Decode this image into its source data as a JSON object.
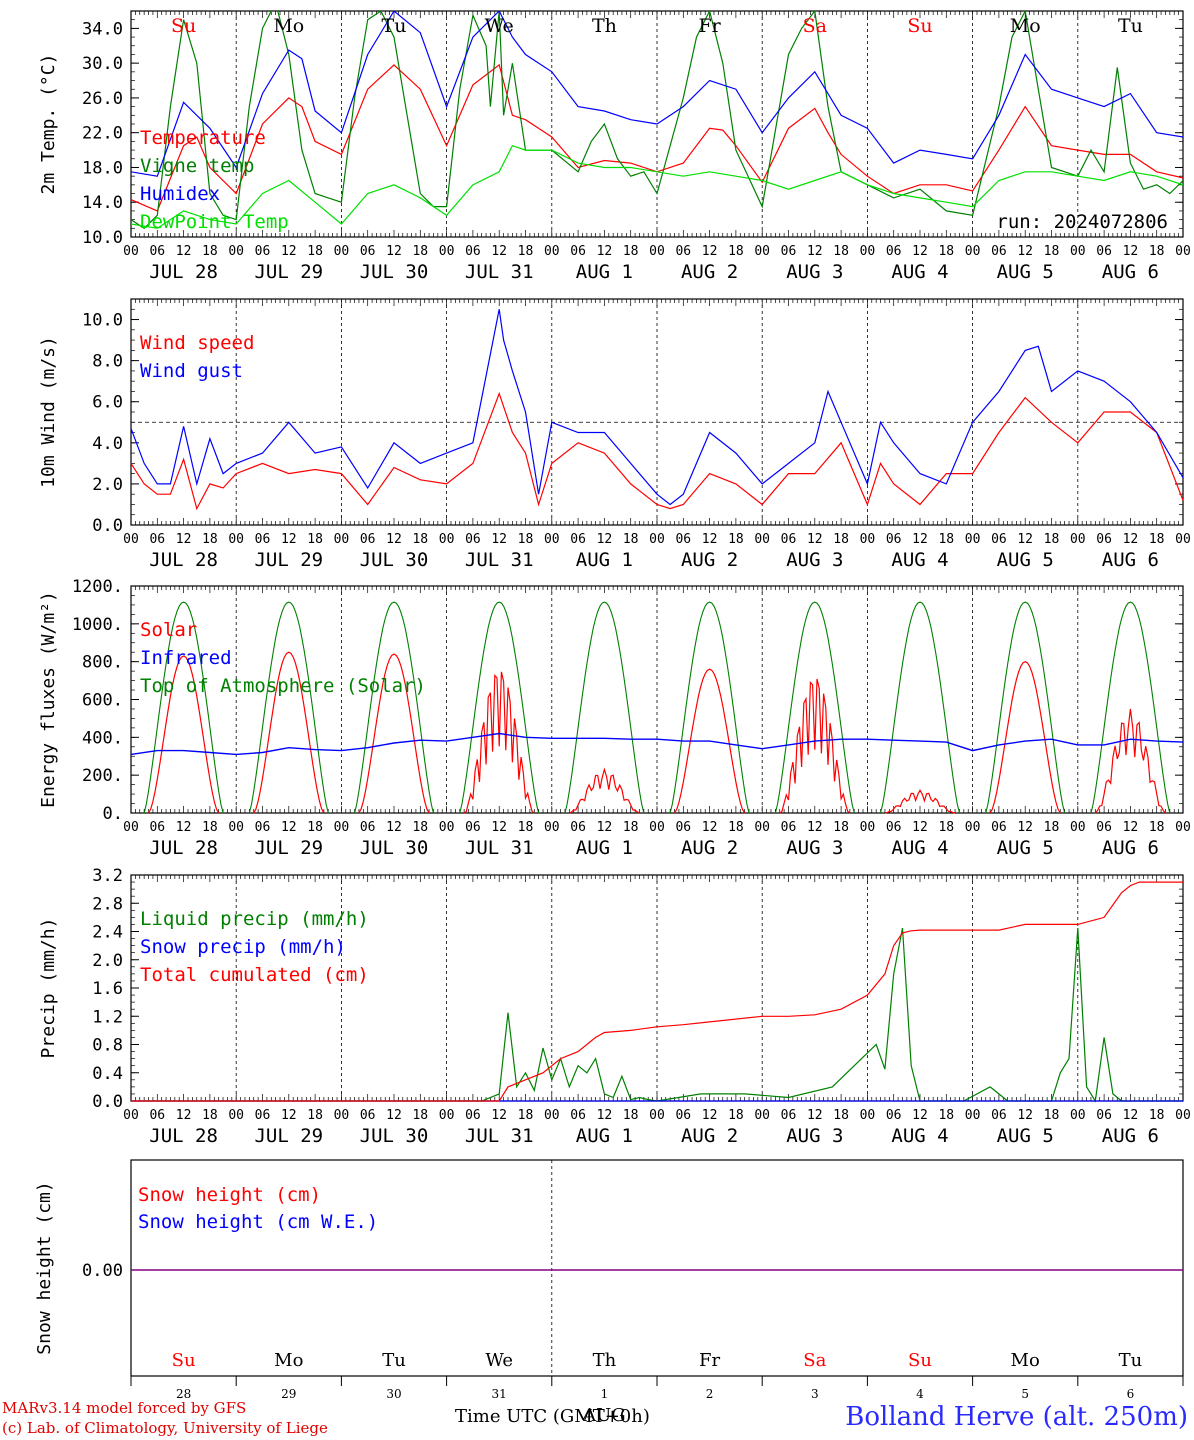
{
  "colors": {
    "temperature": "#ff0000",
    "vigne": "#008000",
    "humidex": "#0000ff",
    "dewpoint": "#00e000",
    "wind_speed": "#ff0000",
    "wind_gust": "#0000ff",
    "solar": "#ff0000",
    "infrared": "#0000ff",
    "toa": "#008000",
    "liquid": "#008000",
    "snow_precip": "#0000ff",
    "total_cum": "#ff0000",
    "snow_cm": "#ff0000",
    "snow_we": "#0000ff",
    "snow_line": "#800080",
    "weekend_day": "#ff0000",
    "weekday": "#000000"
  },
  "time_axis": {
    "hour_labels": [
      "00",
      "06",
      "12",
      "18"
    ],
    "end_label": "00",
    "date_labels": [
      "JUL 28",
      "JUL 29",
      "JUL 30",
      "JUL 31",
      "AUG  1",
      "AUG  2",
      "AUG  3",
      "AUG  4",
      "AUG  5",
      "AUG  6"
    ],
    "day_names": [
      "Su",
      "Mo",
      "Tu",
      "We",
      "Th",
      "Fr",
      "Sa",
      "Su",
      "Mo",
      "Tu"
    ],
    "day_weekend": [
      true,
      false,
      false,
      false,
      false,
      false,
      true,
      true,
      false,
      false
    ],
    "day_numbers": [
      "28",
      "29",
      "30",
      "31",
      "1",
      "2",
      "3",
      "4",
      "5",
      "6"
    ],
    "month_label": "AUG",
    "axis_title": "Time UTC (GMT+0h)"
  },
  "run_label": "run: 2024072806",
  "footer": {
    "line1": "MARv3.14 model forced by GFS",
    "line2": "(c) Lab. of Climatology, University of Liege",
    "station": "Bolland  Herve (alt. 250m)"
  },
  "chart_data": [
    {
      "type": "line",
      "ylabel": "2m Temp. (°C)",
      "ylim": [
        10,
        36
      ],
      "y_ticks": [
        "10.0",
        "14.0",
        "18.0",
        "22.0",
        "26.0",
        "30.0",
        "34.0"
      ],
      "x_unit": "hours since JUL 28 00 UTC",
      "series": [
        {
          "name": "Temperature",
          "color_key": "temperature",
          "x": [
            0,
            6,
            12,
            15,
            18,
            24,
            30,
            36,
            39,
            42,
            48,
            54,
            60,
            66,
            72,
            78,
            84,
            87,
            90,
            96,
            102,
            108,
            114,
            120,
            126,
            132,
            135,
            138,
            144,
            150,
            156,
            159,
            162,
            168,
            174,
            180,
            186,
            192,
            198,
            204,
            210,
            216,
            222,
            228,
            234,
            240
          ],
          "values": [
            14.3,
            13.0,
            20.5,
            21.5,
            18.0,
            15.0,
            23.0,
            26.0,
            25.0,
            21.0,
            19.5,
            27.0,
            29.8,
            27.0,
            20.5,
            27.5,
            29.8,
            24.0,
            23.5,
            21.5,
            18.0,
            18.8,
            18.5,
            17.5,
            18.5,
            22.5,
            22.3,
            20.5,
            16.3,
            22.5,
            24.8,
            22.0,
            19.5,
            17.0,
            15.0,
            16.0,
            16.0,
            15.3,
            20.0,
            25.0,
            20.5,
            20.0,
            19.5,
            19.5,
            17.5,
            16.8
          ]
        },
        {
          "name": "Vigne temp",
          "color_key": "vigne",
          "x": [
            0,
            3,
            6,
            9,
            12,
            15,
            18,
            21,
            24,
            27,
            30,
            33,
            36,
            39,
            42,
            45,
            48,
            51,
            54,
            57,
            60,
            63,
            66,
            69,
            72,
            75,
            78,
            81,
            82,
            84,
            85,
            87,
            90,
            96,
            102,
            105,
            108,
            111,
            114,
            117,
            120,
            126,
            129,
            132,
            135,
            138,
            144,
            150,
            153,
            156,
            159,
            162,
            168,
            174,
            180,
            186,
            192,
            198,
            201,
            204,
            207,
            210,
            213,
            216,
            219,
            222,
            225,
            228,
            231,
            234,
            237,
            240
          ],
          "values": [
            12.0,
            11.0,
            12.5,
            25.0,
            35.0,
            30.0,
            15.0,
            12.5,
            12.0,
            25.0,
            34.0,
            37.0,
            31.0,
            20.0,
            15.0,
            14.5,
            14.0,
            26.0,
            35.0,
            36.0,
            33.0,
            24.0,
            15.0,
            13.5,
            13.5,
            27.0,
            35.5,
            32.0,
            25.0,
            36.0,
            24.0,
            30.0,
            20.0,
            20.0,
            17.5,
            21.0,
            23.0,
            19.0,
            17.0,
            17.5,
            15.0,
            26.0,
            33.0,
            36.0,
            30.0,
            20.0,
            13.5,
            31.0,
            34.0,
            36.0,
            25.0,
            17.5,
            16.0,
            14.5,
            15.5,
            13.0,
            12.5,
            25.0,
            33.0,
            36.0,
            27.0,
            18.0,
            17.5,
            17.0,
            20.0,
            17.5,
            29.5,
            18.5,
            15.5,
            16.0,
            15.0,
            16.5
          ]
        },
        {
          "name": "Humidex",
          "color_key": "humidex",
          "x": [
            0,
            6,
            12,
            18,
            24,
            30,
            36,
            39,
            42,
            48,
            54,
            60,
            66,
            72,
            78,
            84,
            87,
            90,
            96,
            102,
            108,
            114,
            120,
            126,
            132,
            138,
            144,
            150,
            156,
            162,
            168,
            174,
            180,
            186,
            192,
            198,
            204,
            210,
            216,
            222,
            228,
            234,
            240
          ],
          "values": [
            17.5,
            17.0,
            25.5,
            22.5,
            18.0,
            26.5,
            31.5,
            30.5,
            24.5,
            22.0,
            31.0,
            36.0,
            33.5,
            25.0,
            33.0,
            36.0,
            33.0,
            31.0,
            29.0,
            25.0,
            24.5,
            23.5,
            23.0,
            25.0,
            28.0,
            27.0,
            22.0,
            26.0,
            29.0,
            24.0,
            22.5,
            18.5,
            20.0,
            19.5,
            19.0,
            24.0,
            31.0,
            27.0,
            26.0,
            25.0,
            26.5,
            22.0,
            21.5
          ]
        },
        {
          "name": "DewPoint Temp",
          "color_key": "dewpoint",
          "x": [
            0,
            6,
            12,
            18,
            24,
            30,
            36,
            42,
            48,
            54,
            60,
            66,
            72,
            78,
            84,
            87,
            90,
            96,
            102,
            108,
            114,
            120,
            126,
            132,
            138,
            144,
            150,
            156,
            162,
            168,
            174,
            180,
            186,
            192,
            198,
            204,
            210,
            216,
            222,
            228,
            234,
            240
          ],
          "values": [
            11.5,
            11.0,
            13.0,
            12.0,
            11.5,
            15.0,
            16.5,
            14.0,
            11.5,
            15.0,
            16.0,
            14.5,
            12.5,
            16.0,
            17.5,
            20.5,
            20.0,
            20.0,
            18.5,
            18.0,
            18.0,
            17.5,
            17.0,
            17.5,
            17.0,
            16.5,
            15.5,
            16.5,
            17.5,
            16.0,
            15.0,
            14.5,
            14.0,
            13.5,
            16.5,
            17.5,
            17.5,
            17.0,
            16.5,
            17.5,
            17.0,
            16.0
          ]
        }
      ]
    },
    {
      "type": "line",
      "ylabel": "10m Wind (m/s)",
      "ylim": [
        0,
        11
      ],
      "y_ticks": [
        "0.0",
        "2.0",
        "4.0",
        "6.0",
        "8.0",
        "10.0"
      ],
      "threshold": 5,
      "series": [
        {
          "name": "Wind speed",
          "color_key": "wind_speed",
          "x": [
            0,
            3,
            6,
            9,
            12,
            15,
            18,
            21,
            24,
            30,
            36,
            42,
            48,
            54,
            60,
            66,
            72,
            78,
            84,
            87,
            90,
            93,
            96,
            102,
            108,
            114,
            120,
            123,
            126,
            132,
            138,
            144,
            150,
            156,
            162,
            168,
            171,
            174,
            180,
            186,
            192,
            198,
            204,
            210,
            216,
            222,
            228,
            234,
            240
          ],
          "values": [
            3.0,
            2.0,
            1.5,
            1.5,
            3.2,
            0.8,
            2.0,
            1.8,
            2.5,
            3.0,
            2.5,
            2.7,
            2.5,
            1.0,
            2.8,
            2.2,
            2.0,
            3.0,
            6.4,
            4.5,
            3.5,
            1.0,
            3.0,
            4.0,
            3.5,
            2.0,
            1.0,
            0.8,
            1.0,
            2.5,
            2.0,
            1.0,
            2.5,
            2.5,
            4.0,
            1.0,
            3.0,
            2.0,
            1.0,
            2.5,
            2.5,
            4.5,
            6.2,
            5.0,
            4.0,
            5.5,
            5.5,
            4.5,
            1.2
          ]
        },
        {
          "name": "Wind gust",
          "color_key": "wind_gust",
          "x": [
            0,
            3,
            6,
            9,
            12,
            15,
            18,
            21,
            24,
            30,
            36,
            42,
            48,
            54,
            60,
            66,
            72,
            78,
            84,
            85,
            87,
            90,
            93,
            96,
            102,
            108,
            114,
            120,
            123,
            126,
            132,
            138,
            144,
            150,
            156,
            159,
            162,
            168,
            171,
            174,
            180,
            186,
            192,
            198,
            204,
            207,
            210,
            216,
            222,
            228,
            234,
            240
          ],
          "values": [
            4.7,
            3.0,
            2.0,
            2.0,
            4.8,
            2.0,
            4.2,
            2.5,
            3.0,
            3.5,
            5.0,
            3.5,
            3.8,
            1.8,
            4.0,
            3.0,
            3.5,
            4.0,
            10.5,
            9.0,
            7.5,
            5.5,
            1.5,
            5.0,
            4.5,
            4.5,
            3.0,
            1.5,
            1.0,
            1.5,
            4.5,
            3.5,
            2.0,
            3.0,
            4.0,
            6.5,
            5.0,
            2.0,
            5.0,
            4.0,
            2.5,
            2.0,
            5.0,
            6.5,
            8.5,
            8.7,
            6.5,
            7.5,
            7.0,
            6.0,
            4.5,
            2.3
          ]
        }
      ]
    },
    {
      "type": "line",
      "ylabel": "Energy fluxes (W/m²)",
      "ylim": [
        0,
        1200
      ],
      "y_ticks": [
        "0.",
        "200.",
        "400.",
        "600.",
        "800.",
        "1000.",
        "1200."
      ],
      "series": [
        {
          "name": "Solar",
          "color_key": "solar",
          "peaks": [
            830,
            850,
            840,
            800,
            230,
            760,
            760,
            120,
            800,
            550
          ]
        },
        {
          "name": "Infrared",
          "color_key": "infrared",
          "x": [
            0,
            6,
            12,
            18,
            24,
            30,
            36,
            42,
            48,
            54,
            60,
            66,
            72,
            78,
            84,
            90,
            96,
            102,
            108,
            114,
            120,
            126,
            132,
            138,
            144,
            150,
            156,
            162,
            168,
            174,
            180,
            186,
            192,
            198,
            204,
            210,
            216,
            222,
            228,
            234,
            240
          ],
          "values": [
            310,
            330,
            330,
            320,
            310,
            320,
            345,
            335,
            330,
            345,
            370,
            385,
            380,
            400,
            420,
            400,
            395,
            395,
            395,
            390,
            390,
            380,
            380,
            360,
            340,
            360,
            380,
            390,
            390,
            385,
            380,
            375,
            330,
            360,
            380,
            390,
            360,
            360,
            390,
            380,
            375
          ]
        },
        {
          "name": "Top of Atmosphere (Solar)",
          "color_key": "toa",
          "peak": 1115
        }
      ]
    },
    {
      "type": "line",
      "ylabel": "Precip (mm/h)",
      "ylim": [
        0,
        3.2
      ],
      "y_ticks": [
        "0.0",
        "0.4",
        "0.8",
        "1.2",
        "1.6",
        "2.0",
        "2.4",
        "2.8",
        "3.2"
      ],
      "series": [
        {
          "name": "Liquid precip (mm/h)",
          "color_key": "liquid",
          "x": [
            0,
            80,
            84,
            86,
            88,
            90,
            92,
            94,
            96,
            98,
            100,
            102,
            104,
            106,
            108,
            110,
            112,
            114,
            116,
            118,
            120,
            130,
            140,
            150,
            160,
            170,
            172,
            174,
            176,
            178,
            180,
            182,
            184,
            190,
            196,
            198,
            200,
            210,
            212,
            214,
            216,
            218,
            220,
            222,
            224,
            226,
            228,
            230,
            240
          ],
          "values": [
            0,
            0,
            0.1,
            1.25,
            0.2,
            0.4,
            0.15,
            0.75,
            0.3,
            0.6,
            0.2,
            0.5,
            0.4,
            0.6,
            0.1,
            0.05,
            0.35,
            0.02,
            0.05,
            0.02,
            0.0,
            0.1,
            0.1,
            0.05,
            0.2,
            0.8,
            0.45,
            1.8,
            2.45,
            0.5,
            0.0,
            0.0,
            0.0,
            0.0,
            0.2,
            0.1,
            0.0,
            0.0,
            0.4,
            0.6,
            2.45,
            0.2,
            0.0,
            0.9,
            0.1,
            0.0,
            0.0,
            0.0,
            0.0
          ]
        },
        {
          "name": "Snow precip (mm/h)",
          "color_key": "snow_precip",
          "x": [
            0,
            240
          ],
          "values": [
            0,
            0
          ]
        },
        {
          "name": "Total cumulated (cm)",
          "color_key": "total_cum",
          "x": [
            0,
            84,
            86,
            90,
            94,
            98,
            102,
            106,
            108,
            114,
            120,
            126,
            132,
            144,
            150,
            156,
            162,
            168,
            172,
            174,
            176,
            178,
            180,
            186,
            198,
            204,
            210,
            216,
            222,
            226,
            228,
            230,
            240
          ],
          "values": [
            0,
            0,
            0.2,
            0.3,
            0.4,
            0.6,
            0.7,
            0.9,
            0.97,
            1.0,
            1.05,
            1.08,
            1.12,
            1.2,
            1.2,
            1.22,
            1.3,
            1.5,
            1.8,
            2.2,
            2.38,
            2.41,
            2.42,
            2.42,
            2.42,
            2.5,
            2.5,
            2.5,
            2.6,
            2.95,
            3.05,
            3.1,
            3.1
          ]
        }
      ]
    },
    {
      "type": "line",
      "ylabel": "Snow height (cm)",
      "y_ticks": [
        "0.00"
      ],
      "series": [
        {
          "name": "Snow height (cm)",
          "color_key": "snow_cm",
          "x": [
            0,
            240
          ],
          "values": [
            0,
            0
          ]
        },
        {
          "name": "Snow height (cm W.E.)",
          "color_key": "snow_we",
          "x": [
            0,
            240
          ],
          "values": [
            0,
            0
          ]
        }
      ]
    }
  ]
}
